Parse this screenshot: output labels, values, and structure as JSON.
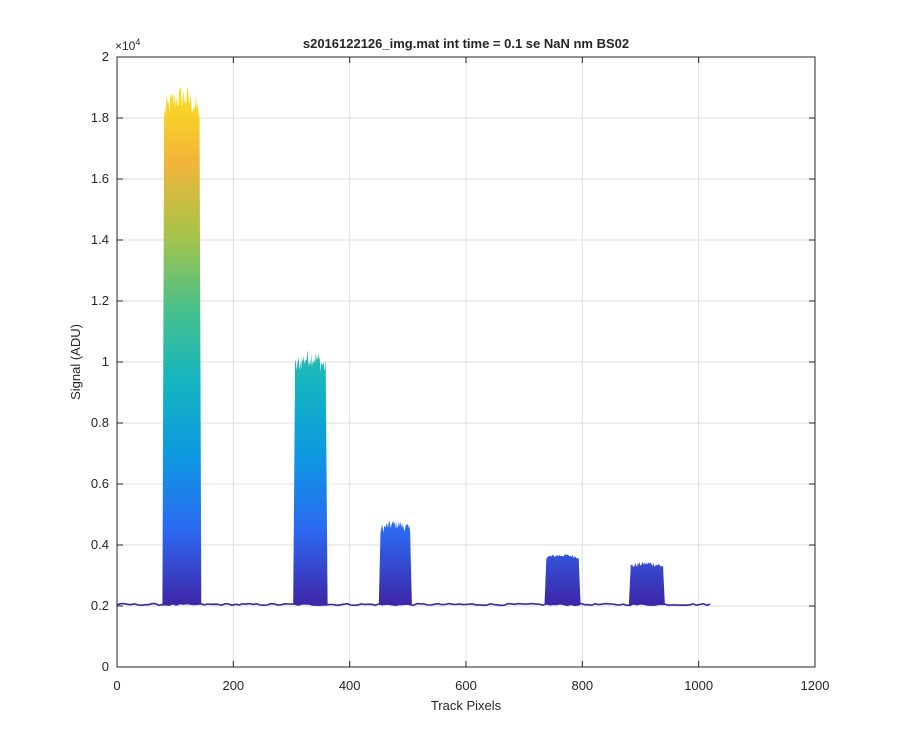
{
  "chart_data": {
    "type": "area",
    "title": "s2016122126_img.mat int time = 0.1 se  NaN nm BS02",
    "xlabel": "Track Pixels",
    "ylabel": "Signal (ADU)",
    "y_exponent_label": "×10",
    "y_exponent_power": "4",
    "xlim": [
      0,
      1200
    ],
    "ylim": [
      0,
      20000
    ],
    "x_ticks": [
      0,
      200,
      400,
      600,
      800,
      1000,
      1200
    ],
    "x_tick_labels": [
      "0",
      "200",
      "400",
      "600",
      "800",
      "1000",
      "1200"
    ],
    "y_ticks": [
      0,
      2000,
      4000,
      6000,
      8000,
      10000,
      12000,
      14000,
      16000,
      18000,
      20000
    ],
    "y_tick_labels": [
      "0",
      "0.2",
      "0.4",
      "0.6",
      "0.8",
      "1",
      "1.2",
      "1.4",
      "1.6",
      "1.8",
      "2"
    ],
    "grid": true,
    "colormap": [
      "#3e26a8",
      "#2c69f2",
      "#0d98e0",
      "#13b5c1",
      "#49c08b",
      "#a7c34a",
      "#f3b53a",
      "#f9e01e"
    ],
    "baseline": 2050,
    "x_end": 1023,
    "peaks": [
      {
        "x_start": 78,
        "x_end": 145,
        "top": 18200,
        "max": 19000
      },
      {
        "x_start": 303,
        "x_end": 362,
        "top": 9800,
        "max": 10400
      },
      {
        "x_start": 450,
        "x_end": 507,
        "top": 4500,
        "max": 4800
      },
      {
        "x_start": 735,
        "x_end": 797,
        "top": 3600,
        "max": 3700
      },
      {
        "x_start": 880,
        "x_end": 942,
        "top": 3300,
        "max": 3450
      }
    ]
  }
}
